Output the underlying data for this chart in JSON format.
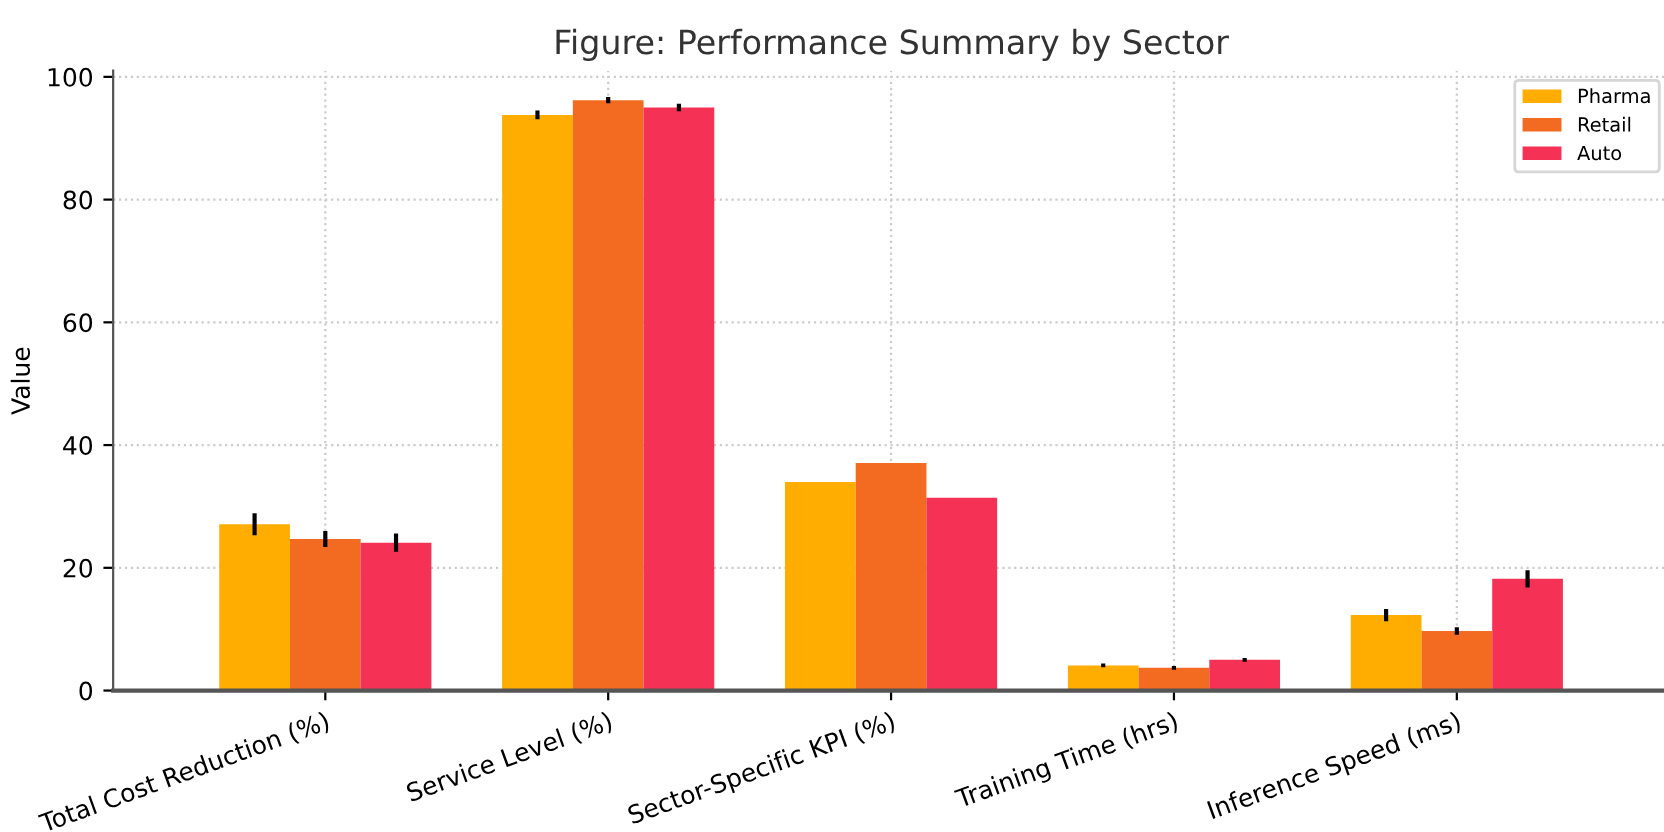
{
  "chart_data": {
    "type": "bar",
    "title": "Figure: Performance Summary by Sector",
    "ylabel": "Value",
    "categories": [
      "Total Cost Reduction (%)",
      "Service Level (%)",
      "Sector-Specific KPI (%)",
      "Training Time (hrs)",
      "Inference Speed (ms)"
    ],
    "series": [
      {
        "name": "Pharma",
        "color": "#ffad00",
        "values": [
          27.1,
          93.8,
          34.0,
          4.1,
          12.3
        ],
        "errors": [
          1.8,
          0.7,
          null,
          0.3,
          1.0
        ]
      },
      {
        "name": "Retail",
        "color": "#f26b21",
        "values": [
          24.7,
          96.2,
          37.1,
          3.7,
          9.7
        ],
        "errors": [
          1.3,
          0.5,
          null,
          0.3,
          0.6
        ]
      },
      {
        "name": "Auto",
        "color": "#f53155",
        "values": [
          24.1,
          95.0,
          31.4,
          5.0,
          18.2
        ],
        "errors": [
          1.5,
          0.6,
          null,
          0.3,
          1.4
        ]
      }
    ],
    "ylim": [
      0,
      101
    ],
    "yticks": [
      0,
      20,
      40,
      60,
      80,
      100
    ],
    "grid": true,
    "legend": "top right"
  }
}
